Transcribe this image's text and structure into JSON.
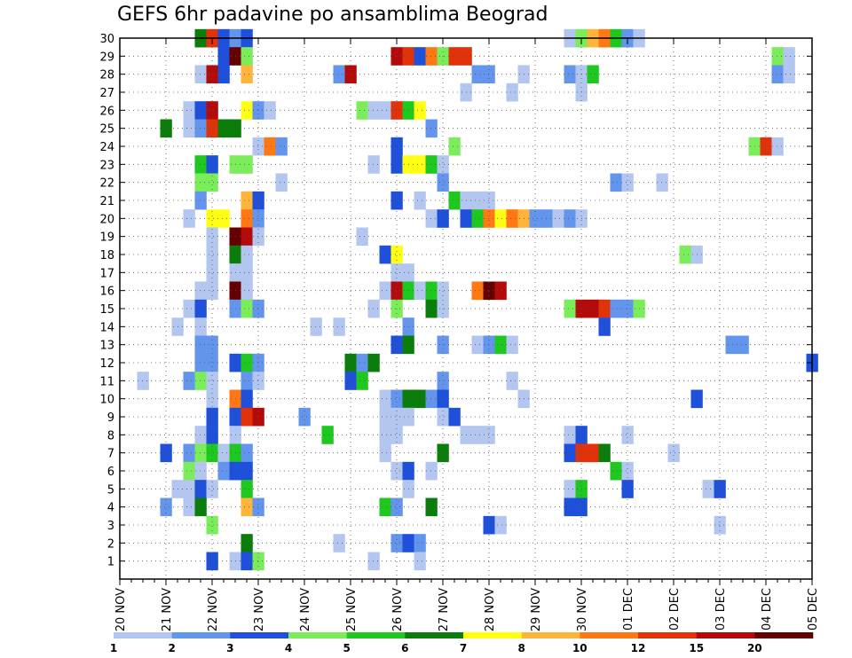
{
  "chart_data": {
    "type": "heatmap",
    "title": "GEFS 6hr padavine po ansamblima Beograd",
    "xlabel": "",
    "ylabel": "",
    "x_tick_labels": [
      "20 NOV",
      "21 NOV",
      "22 NOV",
      "23 NOV",
      "24 NOV",
      "25 NOV",
      "26 NOV",
      "27 NOV",
      "28 NOV",
      "29 NOV",
      "30 NOV",
      "01 DEC",
      "02 DEC",
      "03 DEC",
      "04 DEC",
      "05 DEC"
    ],
    "y_tick_labels": [
      "1",
      "2",
      "3",
      "4",
      "5",
      "6",
      "7",
      "8",
      "9",
      "10",
      "11",
      "12",
      "13",
      "14",
      "15",
      "16",
      "17",
      "18",
      "19",
      "20",
      "21",
      "22",
      "23",
      "24",
      "25",
      "26",
      "27",
      "28",
      "29",
      "30"
    ],
    "grid": true,
    "time_steps": 60,
    "members": 30,
    "colorbar": {
      "levels": [
        "1",
        "2",
        "3",
        "4",
        "5",
        "6",
        "7",
        "8",
        "10",
        "12",
        "15",
        "20"
      ],
      "colors": [
        "#b3c6f0",
        "#6495ed",
        "#1e50dc",
        "#7ced5a",
        "#1ec81e",
        "#0a7d0a",
        "#ffff14",
        "#ffb43c",
        "#ff7814",
        "#e1320a",
        "#b40a0a",
        "#640000"
      ]
    },
    "cells": [
      [
        7,
        30,
        6
      ],
      [
        8,
        30,
        10
      ],
      [
        9,
        30,
        3
      ],
      [
        10,
        30,
        2
      ],
      [
        11,
        30,
        3
      ],
      [
        39,
        30,
        1
      ],
      [
        40,
        30,
        4
      ],
      [
        41,
        30,
        8
      ],
      [
        42,
        30,
        9
      ],
      [
        43,
        30,
        5
      ],
      [
        44,
        30,
        2
      ],
      [
        45,
        30,
        1
      ],
      [
        9,
        29,
        3
      ],
      [
        10,
        29,
        12
      ],
      [
        11,
        29,
        4
      ],
      [
        24,
        29,
        11
      ],
      [
        25,
        29,
        10
      ],
      [
        26,
        29,
        3
      ],
      [
        27,
        29,
        9
      ],
      [
        28,
        29,
        4
      ],
      [
        29,
        29,
        10
      ],
      [
        30,
        29,
        10
      ],
      [
        57,
        29,
        4
      ],
      [
        58,
        29,
        1
      ],
      [
        7,
        28,
        1
      ],
      [
        8,
        28,
        11
      ],
      [
        9,
        28,
        3
      ],
      [
        11,
        28,
        8
      ],
      [
        19,
        28,
        2
      ],
      [
        20,
        28,
        11
      ],
      [
        31,
        28,
        2
      ],
      [
        32,
        28,
        2
      ],
      [
        35,
        28,
        1
      ],
      [
        39,
        28,
        2
      ],
      [
        40,
        28,
        1
      ],
      [
        41,
        28,
        5
      ],
      [
        57,
        28,
        2
      ],
      [
        58,
        28,
        1
      ],
      [
        30,
        27,
        1
      ],
      [
        34,
        27,
        1
      ],
      [
        40,
        27,
        1
      ],
      [
        6,
        26,
        1
      ],
      [
        7,
        26,
        3
      ],
      [
        8,
        26,
        11
      ],
      [
        11,
        26,
        7
      ],
      [
        12,
        26,
        2
      ],
      [
        13,
        26,
        1
      ],
      [
        21,
        26,
        4
      ],
      [
        22,
        26,
        1
      ],
      [
        23,
        26,
        1
      ],
      [
        24,
        26,
        10
      ],
      [
        25,
        26,
        5
      ],
      [
        26,
        26,
        7
      ],
      [
        4,
        25,
        6
      ],
      [
        6,
        25,
        1
      ],
      [
        7,
        25,
        2
      ],
      [
        8,
        25,
        10
      ],
      [
        9,
        25,
        6
      ],
      [
        10,
        25,
        6
      ],
      [
        27,
        25,
        2
      ],
      [
        12,
        24,
        1
      ],
      [
        13,
        24,
        9
      ],
      [
        14,
        24,
        2
      ],
      [
        24,
        24,
        3
      ],
      [
        29,
        24,
        4
      ],
      [
        55,
        24,
        4
      ],
      [
        56,
        24,
        10
      ],
      [
        57,
        24,
        1
      ],
      [
        7,
        23,
        5
      ],
      [
        8,
        23,
        3
      ],
      [
        10,
        23,
        4
      ],
      [
        11,
        23,
        4
      ],
      [
        22,
        23,
        1
      ],
      [
        24,
        23,
        3
      ],
      [
        25,
        23,
        7
      ],
      [
        26,
        23,
        7
      ],
      [
        27,
        23,
        5
      ],
      [
        28,
        23,
        1
      ],
      [
        7,
        22,
        4
      ],
      [
        8,
        22,
        4
      ],
      [
        14,
        22,
        1
      ],
      [
        28,
        22,
        2
      ],
      [
        43,
        22,
        2
      ],
      [
        44,
        22,
        1
      ],
      [
        47,
        22,
        1
      ],
      [
        7,
        21,
        2
      ],
      [
        11,
        21,
        8
      ],
      [
        12,
        21,
        3
      ],
      [
        24,
        21,
        3
      ],
      [
        26,
        21,
        1
      ],
      [
        29,
        21,
        5
      ],
      [
        30,
        21,
        1
      ],
      [
        31,
        21,
        1
      ],
      [
        32,
        21,
        1
      ],
      [
        6,
        20,
        1
      ],
      [
        8,
        20,
        7
      ],
      [
        9,
        20,
        7
      ],
      [
        11,
        20,
        9
      ],
      [
        12,
        20,
        2
      ],
      [
        27,
        20,
        1
      ],
      [
        28,
        20,
        3
      ],
      [
        30,
        20,
        3
      ],
      [
        31,
        20,
        5
      ],
      [
        32,
        20,
        9
      ],
      [
        33,
        20,
        7
      ],
      [
        34,
        20,
        9
      ],
      [
        35,
        20,
        8
      ],
      [
        36,
        20,
        2
      ],
      [
        37,
        20,
        2
      ],
      [
        38,
        20,
        1
      ],
      [
        39,
        20,
        2
      ],
      [
        40,
        20,
        1
      ],
      [
        8,
        19,
        1
      ],
      [
        10,
        19,
        12
      ],
      [
        11,
        19,
        11
      ],
      [
        12,
        19,
        1
      ],
      [
        21,
        19,
        1
      ],
      [
        8,
        18,
        1
      ],
      [
        10,
        18,
        6
      ],
      [
        11,
        18,
        1
      ],
      [
        23,
        18,
        3
      ],
      [
        24,
        18,
        7
      ],
      [
        49,
        18,
        4
      ],
      [
        50,
        18,
        1
      ],
      [
        8,
        17,
        1
      ],
      [
        10,
        17,
        1
      ],
      [
        11,
        17,
        1
      ],
      [
        24,
        17,
        1
      ],
      [
        25,
        17,
        1
      ],
      [
        7,
        16,
        1
      ],
      [
        8,
        16,
        1
      ],
      [
        10,
        16,
        12
      ],
      [
        11,
        16,
        1
      ],
      [
        23,
        16,
        1
      ],
      [
        24,
        16,
        11
      ],
      [
        25,
        16,
        5
      ],
      [
        26,
        16,
        1
      ],
      [
        27,
        16,
        5
      ],
      [
        28,
        16,
        1
      ],
      [
        31,
        16,
        9
      ],
      [
        32,
        16,
        12
      ],
      [
        33,
        16,
        11
      ],
      [
        6,
        15,
        1
      ],
      [
        7,
        15,
        3
      ],
      [
        10,
        15,
        2
      ],
      [
        11,
        15,
        4
      ],
      [
        12,
        15,
        2
      ],
      [
        22,
        15,
        1
      ],
      [
        24,
        15,
        4
      ],
      [
        27,
        15,
        6
      ],
      [
        28,
        15,
        1
      ],
      [
        39,
        15,
        4
      ],
      [
        40,
        15,
        11
      ],
      [
        41,
        15,
        11
      ],
      [
        42,
        15,
        10
      ],
      [
        43,
        15,
        2
      ],
      [
        44,
        15,
        2
      ],
      [
        45,
        15,
        4
      ],
      [
        5,
        14,
        1
      ],
      [
        7,
        14,
        1
      ],
      [
        17,
        14,
        1
      ],
      [
        19,
        14,
        1
      ],
      [
        25,
        14,
        2
      ],
      [
        42,
        14,
        3
      ],
      [
        7,
        13,
        2
      ],
      [
        8,
        13,
        2
      ],
      [
        24,
        13,
        3
      ],
      [
        25,
        13,
        6
      ],
      [
        28,
        13,
        2
      ],
      [
        31,
        13,
        1
      ],
      [
        32,
        13,
        2
      ],
      [
        33,
        13,
        5
      ],
      [
        34,
        13,
        1
      ],
      [
        53,
        13,
        2
      ],
      [
        54,
        13,
        2
      ],
      [
        7,
        12,
        2
      ],
      [
        8,
        12,
        2
      ],
      [
        10,
        12,
        3
      ],
      [
        11,
        12,
        5
      ],
      [
        12,
        12,
        2
      ],
      [
        20,
        12,
        6
      ],
      [
        21,
        12,
        2
      ],
      [
        22,
        12,
        6
      ],
      [
        60,
        12,
        3
      ],
      [
        2,
        11,
        1
      ],
      [
        6,
        11,
        2
      ],
      [
        7,
        11,
        4
      ],
      [
        8,
        11,
        1
      ],
      [
        11,
        11,
        2
      ],
      [
        12,
        11,
        1
      ],
      [
        20,
        11,
        3
      ],
      [
        21,
        11,
        5
      ],
      [
        28,
        11,
        2
      ],
      [
        34,
        11,
        1
      ],
      [
        8,
        10,
        1
      ],
      [
        10,
        10,
        9
      ],
      [
        11,
        10,
        3
      ],
      [
        23,
        10,
        1
      ],
      [
        24,
        10,
        2
      ],
      [
        25,
        10,
        6
      ],
      [
        26,
        10,
        6
      ],
      [
        27,
        10,
        2
      ],
      [
        28,
        10,
        3
      ],
      [
        35,
        10,
        1
      ],
      [
        50,
        10,
        3
      ],
      [
        8,
        9,
        3
      ],
      [
        10,
        9,
        3
      ],
      [
        11,
        9,
        10
      ],
      [
        12,
        9,
        11
      ],
      [
        16,
        9,
        2
      ],
      [
        23,
        9,
        1
      ],
      [
        24,
        9,
        1
      ],
      [
        25,
        9,
        1
      ],
      [
        28,
        9,
        1
      ],
      [
        29,
        9,
        3
      ],
      [
        7,
        8,
        1
      ],
      [
        8,
        8,
        3
      ],
      [
        10,
        8,
        1
      ],
      [
        18,
        8,
        5
      ],
      [
        23,
        8,
        1
      ],
      [
        24,
        8,
        1
      ],
      [
        30,
        8,
        1
      ],
      [
        31,
        8,
        1
      ],
      [
        32,
        8,
        1
      ],
      [
        39,
        8,
        1
      ],
      [
        40,
        8,
        3
      ],
      [
        44,
        8,
        1
      ],
      [
        4,
        7,
        3
      ],
      [
        6,
        7,
        2
      ],
      [
        7,
        7,
        4
      ],
      [
        8,
        7,
        5
      ],
      [
        9,
        7,
        1
      ],
      [
        10,
        7,
        5
      ],
      [
        11,
        7,
        2
      ],
      [
        23,
        7,
        1
      ],
      [
        28,
        7,
        6
      ],
      [
        39,
        7,
        3
      ],
      [
        40,
        7,
        10
      ],
      [
        41,
        7,
        10
      ],
      [
        42,
        7,
        6
      ],
      [
        48,
        7,
        1
      ],
      [
        6,
        6,
        4
      ],
      [
        7,
        6,
        1
      ],
      [
        9,
        6,
        2
      ],
      [
        10,
        6,
        3
      ],
      [
        11,
        6,
        3
      ],
      [
        24,
        6,
        1
      ],
      [
        25,
        6,
        3
      ],
      [
        27,
        6,
        1
      ],
      [
        43,
        6,
        5
      ],
      [
        44,
        6,
        1
      ],
      [
        5,
        5,
        1
      ],
      [
        6,
        5,
        1
      ],
      [
        7,
        5,
        3
      ],
      [
        8,
        5,
        1
      ],
      [
        11,
        5,
        5
      ],
      [
        25,
        5,
        1
      ],
      [
        39,
        5,
        1
      ],
      [
        40,
        5,
        5
      ],
      [
        44,
        5,
        3
      ],
      [
        51,
        5,
        1
      ],
      [
        52,
        5,
        3
      ],
      [
        4,
        4,
        2
      ],
      [
        6,
        4,
        1
      ],
      [
        7,
        4,
        6
      ],
      [
        11,
        4,
        8
      ],
      [
        12,
        4,
        2
      ],
      [
        23,
        4,
        5
      ],
      [
        24,
        4,
        2
      ],
      [
        27,
        4,
        6
      ],
      [
        39,
        4,
        3
      ],
      [
        40,
        4,
        3
      ],
      [
        8,
        3,
        4
      ],
      [
        32,
        3,
        3
      ],
      [
        33,
        3,
        1
      ],
      [
        52,
        3,
        1
      ],
      [
        19,
        2,
        1
      ],
      [
        24,
        2,
        2
      ],
      [
        25,
        2,
        3
      ],
      [
        26,
        2,
        2
      ],
      [
        11,
        2,
        6
      ],
      [
        8,
        1,
        3
      ],
      [
        10,
        1,
        1
      ],
      [
        11,
        1,
        3
      ],
      [
        12,
        1,
        4
      ],
      [
        22,
        1,
        1
      ],
      [
        26,
        1,
        1
      ]
    ]
  }
}
